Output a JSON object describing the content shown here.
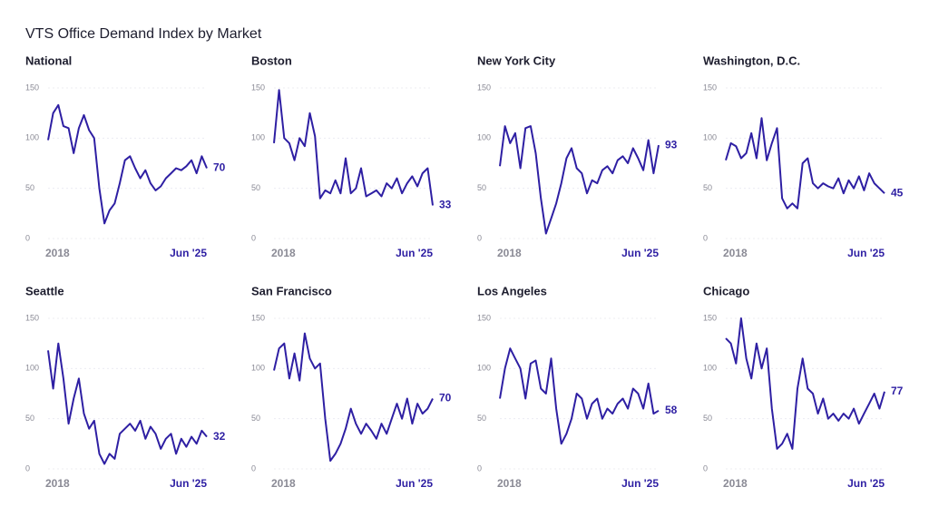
{
  "title": "VTS Office Demand Index by Market",
  "chart_data": [
    {
      "type": "line",
      "title": "National",
      "color": "#2e1fa3",
      "ylim": [
        0,
        150
      ],
      "yticks": [
        0,
        50,
        100,
        150
      ],
      "grid": true,
      "categories": [
        "2018",
        null,
        null,
        null,
        null,
        null,
        null,
        null,
        null,
        null,
        null,
        null,
        null,
        null,
        null,
        null,
        null,
        null,
        null,
        null,
        null,
        null,
        null,
        null,
        null,
        null,
        null,
        null,
        null,
        null,
        null,
        "Jun '25"
      ],
      "values": [
        98,
        125,
        133,
        112,
        110,
        85,
        110,
        123,
        108,
        100,
        50,
        15,
        28,
        35,
        55,
        78,
        82,
        70,
        60,
        68,
        55,
        48,
        52,
        60,
        65,
        70,
        68,
        72,
        78,
        65,
        82,
        70
      ]
    },
    {
      "type": "line",
      "title": "Boston",
      "color": "#2e1fa3",
      "ylim": [
        0,
        150
      ],
      "yticks": [
        0,
        50,
        100,
        150
      ],
      "grid": true,
      "categories": [
        "2018",
        null,
        null,
        null,
        null,
        null,
        null,
        null,
        null,
        null,
        null,
        null,
        null,
        null,
        null,
        null,
        null,
        null,
        null,
        null,
        null,
        null,
        null,
        null,
        null,
        null,
        null,
        null,
        null,
        null,
        null,
        "Jun '25"
      ],
      "values": [
        95,
        148,
        100,
        95,
        78,
        100,
        92,
        125,
        102,
        40,
        48,
        45,
        58,
        45,
        80,
        45,
        50,
        70,
        42,
        45,
        48,
        42,
        55,
        50,
        60,
        45,
        55,
        62,
        52,
        65,
        70,
        33
      ]
    },
    {
      "type": "line",
      "title": "New York City",
      "color": "#2e1fa3",
      "ylim": [
        0,
        150
      ],
      "yticks": [
        0,
        50,
        100,
        150
      ],
      "grid": true,
      "categories": [
        "2018",
        null,
        null,
        null,
        null,
        null,
        null,
        null,
        null,
        null,
        null,
        null,
        null,
        null,
        null,
        null,
        null,
        null,
        null,
        null,
        null,
        null,
        null,
        null,
        null,
        null,
        null,
        null,
        null,
        null,
        null,
        "Jun '25"
      ],
      "values": [
        72,
        112,
        95,
        105,
        70,
        110,
        112,
        85,
        40,
        5,
        20,
        35,
        55,
        80,
        90,
        70,
        65,
        45,
        58,
        55,
        68,
        72,
        65,
        78,
        82,
        75,
        90,
        80,
        68,
        98,
        65,
        93
      ]
    },
    {
      "type": "line",
      "title": "Washington, D.C.",
      "color": "#2e1fa3",
      "ylim": [
        0,
        150
      ],
      "yticks": [
        0,
        50,
        100,
        150
      ],
      "grid": true,
      "categories": [
        "2018",
        null,
        null,
        null,
        null,
        null,
        null,
        null,
        null,
        null,
        null,
        null,
        null,
        null,
        null,
        null,
        null,
        null,
        null,
        null,
        null,
        null,
        null,
        null,
        null,
        null,
        null,
        null,
        null,
        null,
        null,
        "Jun '25"
      ],
      "values": [
        78,
        95,
        92,
        80,
        85,
        105,
        80,
        120,
        78,
        95,
        110,
        40,
        30,
        35,
        30,
        75,
        80,
        55,
        50,
        55,
        52,
        50,
        60,
        45,
        58,
        50,
        62,
        48,
        65,
        55,
        50,
        45
      ]
    },
    {
      "type": "line",
      "title": "Seattle",
      "color": "#2e1fa3",
      "ylim": [
        0,
        150
      ],
      "yticks": [
        0,
        50,
        100,
        150
      ],
      "grid": true,
      "categories": [
        "2018",
        null,
        null,
        null,
        null,
        null,
        null,
        null,
        null,
        null,
        null,
        null,
        null,
        null,
        null,
        null,
        null,
        null,
        null,
        null,
        null,
        null,
        null,
        null,
        null,
        null,
        null,
        null,
        null,
        null,
        null,
        "Jun '25"
      ],
      "values": [
        118,
        80,
        125,
        90,
        45,
        70,
        90,
        55,
        40,
        48,
        15,
        5,
        15,
        10,
        35,
        40,
        45,
        38,
        48,
        30,
        42,
        35,
        20,
        30,
        35,
        15,
        30,
        22,
        32,
        25,
        38,
        32
      ]
    },
    {
      "type": "line",
      "title": "San Francisco",
      "color": "#2e1fa3",
      "ylim": [
        0,
        150
      ],
      "yticks": [
        0,
        50,
        100,
        150
      ],
      "grid": true,
      "categories": [
        "2018",
        null,
        null,
        null,
        null,
        null,
        null,
        null,
        null,
        null,
        null,
        null,
        null,
        null,
        null,
        null,
        null,
        null,
        null,
        null,
        null,
        null,
        null,
        null,
        null,
        null,
        null,
        null,
        null,
        null,
        null,
        "Jun '25"
      ],
      "values": [
        98,
        120,
        125,
        90,
        115,
        88,
        135,
        110,
        100,
        105,
        50,
        8,
        15,
        25,
        40,
        60,
        45,
        35,
        45,
        38,
        30,
        45,
        35,
        50,
        65,
        50,
        70,
        45,
        65,
        55,
        60,
        70
      ]
    },
    {
      "type": "line",
      "title": "Los Angeles",
      "color": "#2e1fa3",
      "ylim": [
        0,
        150
      ],
      "yticks": [
        0,
        50,
        100,
        150
      ],
      "grid": true,
      "categories": [
        "2018",
        null,
        null,
        null,
        null,
        null,
        null,
        null,
        null,
        null,
        null,
        null,
        null,
        null,
        null,
        null,
        null,
        null,
        null,
        null,
        null,
        null,
        null,
        null,
        null,
        null,
        null,
        null,
        null,
        null,
        null,
        "Jun '25"
      ],
      "values": [
        70,
        100,
        120,
        110,
        100,
        70,
        105,
        108,
        80,
        75,
        110,
        60,
        25,
        35,
        50,
        75,
        70,
        50,
        65,
        70,
        50,
        60,
        55,
        65,
        70,
        60,
        80,
        75,
        60,
        85,
        55,
        58
      ]
    },
    {
      "type": "line",
      "title": "Chicago",
      "color": "#2e1fa3",
      "ylim": [
        0,
        150
      ],
      "yticks": [
        0,
        50,
        100,
        150
      ],
      "grid": true,
      "categories": [
        "2018",
        null,
        null,
        null,
        null,
        null,
        null,
        null,
        null,
        null,
        null,
        null,
        null,
        null,
        null,
        null,
        null,
        null,
        null,
        null,
        null,
        null,
        null,
        null,
        null,
        null,
        null,
        null,
        null,
        null,
        null,
        "Jun '25"
      ],
      "values": [
        130,
        125,
        105,
        150,
        110,
        90,
        125,
        100,
        120,
        60,
        20,
        25,
        35,
        20,
        80,
        110,
        80,
        75,
        55,
        70,
        50,
        55,
        48,
        55,
        50,
        60,
        45,
        55,
        65,
        75,
        60,
        77
      ]
    }
  ]
}
